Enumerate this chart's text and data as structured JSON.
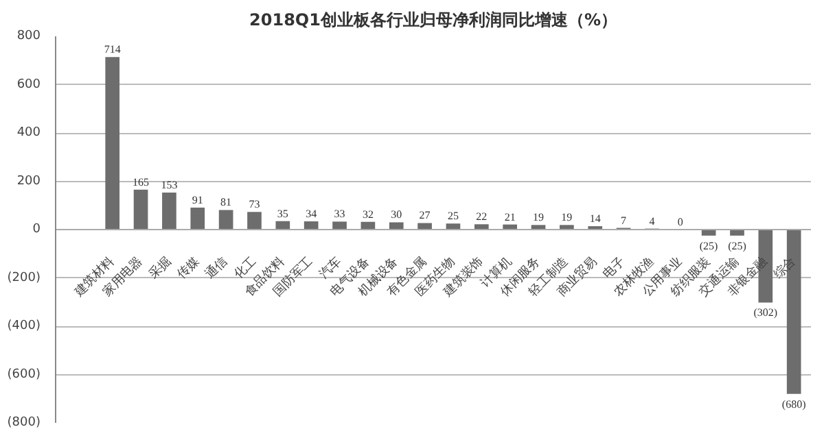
{
  "chart_data": {
    "type": "bar",
    "title": "2018Q1创业板各行业归母净利润同比增速（%）",
    "categories": [
      "建筑材料",
      "家用电器",
      "采掘",
      "传媒",
      "通信",
      "化工",
      "食品饮料",
      "国防军工",
      "汽车",
      "电气设备",
      "机械设备",
      "有色金属",
      "医药生物",
      "建筑装饰",
      "计算机",
      "休闲服务",
      "轻工制造",
      "商业贸易",
      "电子",
      "农林牧渔",
      "公用事业",
      "纺织服装",
      "交通运输",
      "非银金融",
      "综合"
    ],
    "values": [
      714,
      165,
      153,
      91,
      81,
      73,
      35,
      34,
      33,
      32,
      30,
      27,
      25,
      22,
      21,
      19,
      19,
      14,
      7,
      4,
      0,
      -25,
      -25,
      -302,
      -680
    ],
    "value_labels": [
      "714",
      "165",
      "153",
      "91",
      "81",
      "73",
      "35",
      "34",
      "33",
      "32",
      "30",
      "27",
      "25",
      "22",
      "21",
      "19",
      "19",
      "14",
      "7",
      "4",
      "0",
      "(25)",
      "(25)",
      "(302)",
      "(680)"
    ],
    "color": "#6d6d6d",
    "ylim": [
      -800,
      800
    ],
    "yticks": [
      {
        "value": -800,
        "label": "(800)"
      },
      {
        "value": -600,
        "label": "(600)"
      },
      {
        "value": -400,
        "label": "(400)"
      },
      {
        "value": -200,
        "label": "(200)"
      },
      0,
      200,
      400,
      600,
      800
    ],
    "grid": "y"
  }
}
